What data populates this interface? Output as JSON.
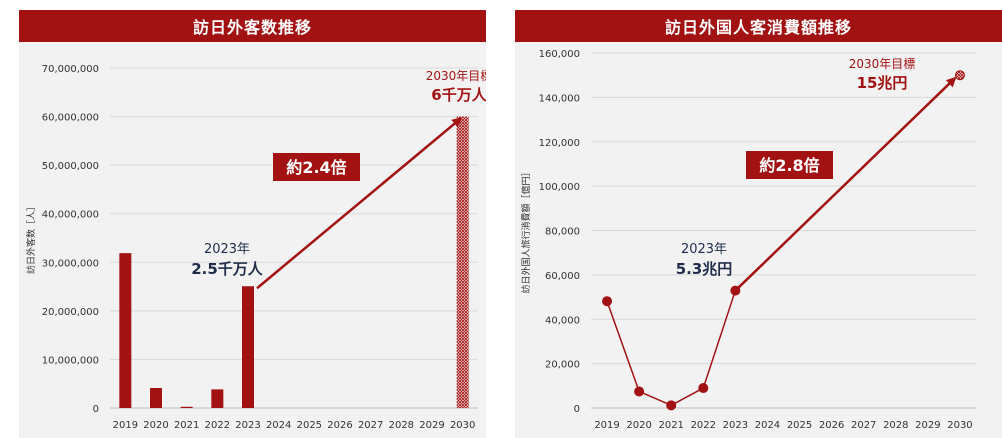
{
  "colors": {
    "accent": "#a31212",
    "navy": "#1f2d4a",
    "grid": "#d9d9d9",
    "axis_text": "#333333",
    "panel_bg": "#f2f2f2"
  },
  "chart_data": [
    {
      "type": "bar",
      "title": "訪日外客数推移",
      "ylabel": "訪日外客数［人］",
      "xlabel": "",
      "categories": [
        "2019",
        "2020",
        "2021",
        "2022",
        "2023",
        "2024",
        "2025",
        "2026",
        "2027",
        "2028",
        "2029",
        "2030"
      ],
      "values": [
        31880000,
        4120000,
        250000,
        3830000,
        25070000,
        null,
        null,
        null,
        null,
        null,
        null,
        60000000
      ],
      "ylim": [
        0,
        70000000
      ],
      "yticks": [
        0,
        10000000,
        20000000,
        30000000,
        40000000,
        50000000,
        60000000,
        70000000
      ],
      "ytick_labels": [
        "0",
        "10,000,000",
        "20,000,000",
        "30,000,000",
        "40,000,000",
        "50,000,000",
        "60,000,000",
        "70,000,000"
      ],
      "target_category": "2030",
      "grid": true,
      "annotations": {
        "start_year": "2023年",
        "start_value": "2.5千万人",
        "target_year": "2030年目標",
        "target_value": "6千万人",
        "growth": "約2.4倍"
      }
    },
    {
      "type": "line",
      "title": "訪日外国人客消費額推移",
      "ylabel": "訪日外国人旅行消費額［億円］",
      "xlabel": "",
      "categories": [
        "2019",
        "2020",
        "2021",
        "2022",
        "2023",
        "2024",
        "2025",
        "2026",
        "2027",
        "2028",
        "2029",
        "2030"
      ],
      "values": [
        48135,
        7446,
        1208,
        8987,
        52923,
        null,
        null,
        null,
        null,
        null,
        null,
        150000
      ],
      "ylim": [
        0,
        160000
      ],
      "yticks": [
        0,
        20000,
        40000,
        60000,
        80000,
        100000,
        120000,
        140000,
        160000
      ],
      "ytick_labels": [
        "0",
        "20,000",
        "40,000",
        "60,000",
        "80,000",
        "100,000",
        "120,000",
        "140,000",
        "160,000"
      ],
      "target_category": "2030",
      "grid": true,
      "annotations": {
        "start_year": "2023年",
        "start_value": "5.3兆円",
        "target_year": "2030年目標",
        "target_value": "15兆円",
        "growth": "約2.8倍"
      }
    }
  ]
}
